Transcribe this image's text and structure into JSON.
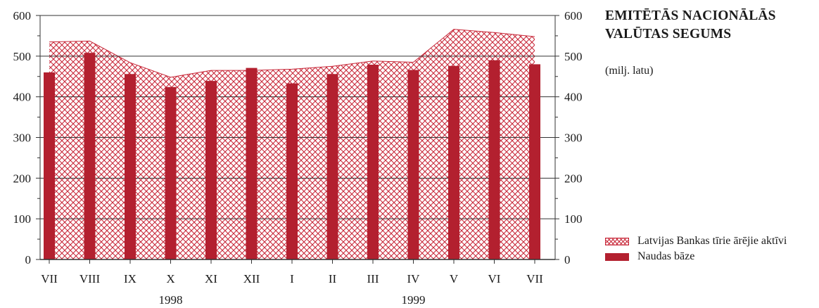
{
  "title_lines": [
    "EMITĒTĀS NACIONĀLĀS",
    "VALŪTAS SEGUMS"
  ],
  "subtitle": "(milj. latu)",
  "colors": {
    "bar": "#b3202f",
    "area": "#c8293a",
    "grid": "#333333"
  },
  "chart_data": {
    "type": "bar",
    "categories": [
      "VII",
      "VIII",
      "IX",
      "X",
      "XI",
      "XII",
      "I",
      "II",
      "III",
      "IV",
      "V",
      "VI",
      "VII"
    ],
    "years": [
      {
        "label": "1998",
        "center_category": 3
      },
      {
        "label": "1999",
        "center_category": 9
      }
    ],
    "ylim": [
      0,
      600
    ],
    "yticks": [
      0,
      100,
      200,
      300,
      400,
      500,
      600
    ],
    "grid": true,
    "legend_position": "right",
    "series": [
      {
        "name": "Latvijas Bankas tīrie ārējie aktīvi",
        "type": "area",
        "values": [
          535,
          537,
          484,
          448,
          465,
          465,
          468,
          475,
          488,
          485,
          566,
          558,
          548
        ]
      },
      {
        "name": "Naudas bāze",
        "type": "bar",
        "values": [
          460,
          508,
          456,
          424,
          439,
          471,
          433,
          456,
          479,
          466,
          476,
          490,
          480
        ]
      }
    ]
  }
}
